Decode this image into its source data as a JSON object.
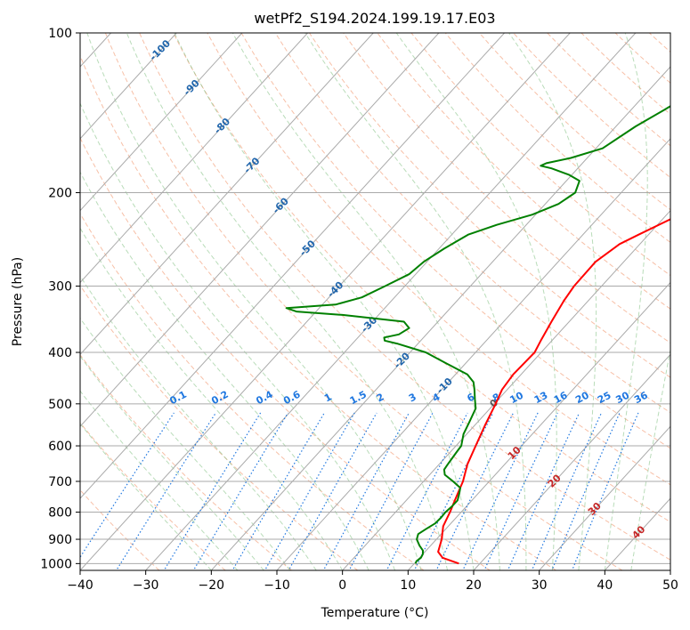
{
  "chart_data": {
    "type": "line",
    "title": "wetPf2_S194.2024.199.19.17.E03",
    "xlabel": "Temperature (°C)",
    "ylabel": "Pressure (hPa)",
    "xlim": [
      -40,
      50
    ],
    "ylim": [
      1030,
      100
    ],
    "y_scale": "log",
    "grid": true,
    "x_ticks": [
      -40,
      -30,
      -20,
      -10,
      0,
      10,
      20,
      30,
      40,
      50
    ],
    "x_tick_labels": [
      "−40",
      "−30",
      "−20",
      "−10",
      "0",
      "10",
      "20",
      "30",
      "40",
      "50"
    ],
    "y_ticks": [
      100,
      200,
      300,
      400,
      500,
      600,
      700,
      800,
      900,
      1000
    ],
    "y_tick_labels": [
      "100",
      "200",
      "300",
      "400",
      "500",
      "600",
      "700",
      "800",
      "900",
      "1000"
    ],
    "skew_isotherm_labels": [
      "-100",
      "-90",
      "-80",
      "-70",
      "-60",
      "-50",
      "-40",
      "-30",
      "-20",
      "-10",
      "0",
      "10",
      "20",
      "30",
      "40"
    ],
    "mixing_ratio_labels": [
      "0.1",
      "0.2",
      "0.4",
      "0.6",
      "1",
      "1.5",
      "2",
      "3",
      "4",
      "6",
      "8",
      "10",
      "13",
      "16",
      "20",
      "25",
      "30",
      "36"
    ],
    "series": [
      {
        "color": "#ff0000",
        "points": [
          [
            1000,
            16.8
          ],
          [
            975,
            13.5
          ],
          [
            950,
            12.0
          ],
          [
            900,
            10.8
          ],
          [
            850,
            9.2
          ],
          [
            800,
            8.3
          ],
          [
            760,
            7.4
          ],
          [
            700,
            6.0
          ],
          [
            650,
            4.3
          ],
          [
            600,
            3.0
          ],
          [
            550,
            1.6
          ],
          [
            500,
            0.2
          ],
          [
            470,
            -0.8
          ],
          [
            440,
            -1.2
          ],
          [
            420,
            -1.1
          ],
          [
            400,
            -1.0
          ],
          [
            380,
            -1.7
          ],
          [
            350,
            -2.7
          ],
          [
            320,
            -3.7
          ],
          [
            300,
            -4.2
          ],
          [
            270,
            -4.3
          ],
          [
            250,
            -3.1
          ],
          [
            240,
            -1.5
          ],
          [
            220,
            2.0
          ],
          [
            200,
            5.5
          ],
          [
            185,
            8.5
          ],
          [
            175,
            10.5
          ],
          [
            165,
            12.5
          ],
          [
            155,
            13.8
          ],
          [
            145,
            15.3
          ],
          [
            135,
            17.5
          ],
          [
            125,
            19.4
          ],
          [
            115,
            21.8
          ],
          [
            105,
            24.2
          ],
          [
            100,
            25.8
          ]
        ]
      },
      {
        "color": "#008000",
        "points": [
          [
            1000,
            10.2
          ],
          [
            990,
            10.0
          ],
          [
            975,
            10.2
          ],
          [
            960,
            10.0
          ],
          [
            945,
            9.5
          ],
          [
            925,
            8.3
          ],
          [
            900,
            7.0
          ],
          [
            880,
            6.5
          ],
          [
            860,
            7.0
          ],
          [
            840,
            7.6
          ],
          [
            820,
            7.7
          ],
          [
            800,
            7.6
          ],
          [
            780,
            7.8
          ],
          [
            760,
            7.8
          ],
          [
            740,
            7.2
          ],
          [
            720,
            6.5
          ],
          [
            700,
            4.5
          ],
          [
            680,
            2.3
          ],
          [
            665,
            1.5
          ],
          [
            650,
            1.3
          ],
          [
            620,
            1.0
          ],
          [
            600,
            0.8
          ],
          [
            570,
            -0.5
          ],
          [
            540,
            -1.3
          ],
          [
            510,
            -2.2
          ],
          [
            490,
            -3.6
          ],
          [
            470,
            -5.0
          ],
          [
            455,
            -6.2
          ],
          [
            440,
            -8.2
          ],
          [
            420,
            -12.8
          ],
          [
            400,
            -17.6
          ],
          [
            385,
            -23.2
          ],
          [
            380,
            -25.5
          ],
          [
            375,
            -26.0
          ],
          [
            370,
            -24.2
          ],
          [
            360,
            -23.5
          ],
          [
            350,
            -25.2
          ],
          [
            340,
            -35.5
          ],
          [
            335,
            -43.0
          ],
          [
            330,
            -45.0
          ],
          [
            325,
            -38.0
          ],
          [
            315,
            -35.0
          ],
          [
            300,
            -33.0
          ],
          [
            285,
            -31.0
          ],
          [
            270,
            -30.5
          ],
          [
            255,
            -29.2
          ],
          [
            240,
            -27.5
          ],
          [
            230,
            -24.5
          ],
          [
            220,
            -20.5
          ],
          [
            210,
            -18.0
          ],
          [
            200,
            -17.0
          ],
          [
            190,
            -18.0
          ],
          [
            185,
            -20.5
          ],
          [
            180,
            -24.0
          ],
          [
            178,
            -26.0
          ],
          [
            176,
            -25.5
          ],
          [
            172,
            -22.5
          ],
          [
            165,
            -19.0
          ],
          [
            150,
            -17.0
          ],
          [
            140,
            -15.0
          ],
          [
            130,
            -13.0
          ],
          [
            120,
            -9.0
          ],
          [
            113,
            -5.5
          ],
          [
            107,
            -4.0
          ],
          [
            103,
            -4.0
          ],
          [
            100,
            -4.5
          ]
        ]
      }
    ]
  }
}
